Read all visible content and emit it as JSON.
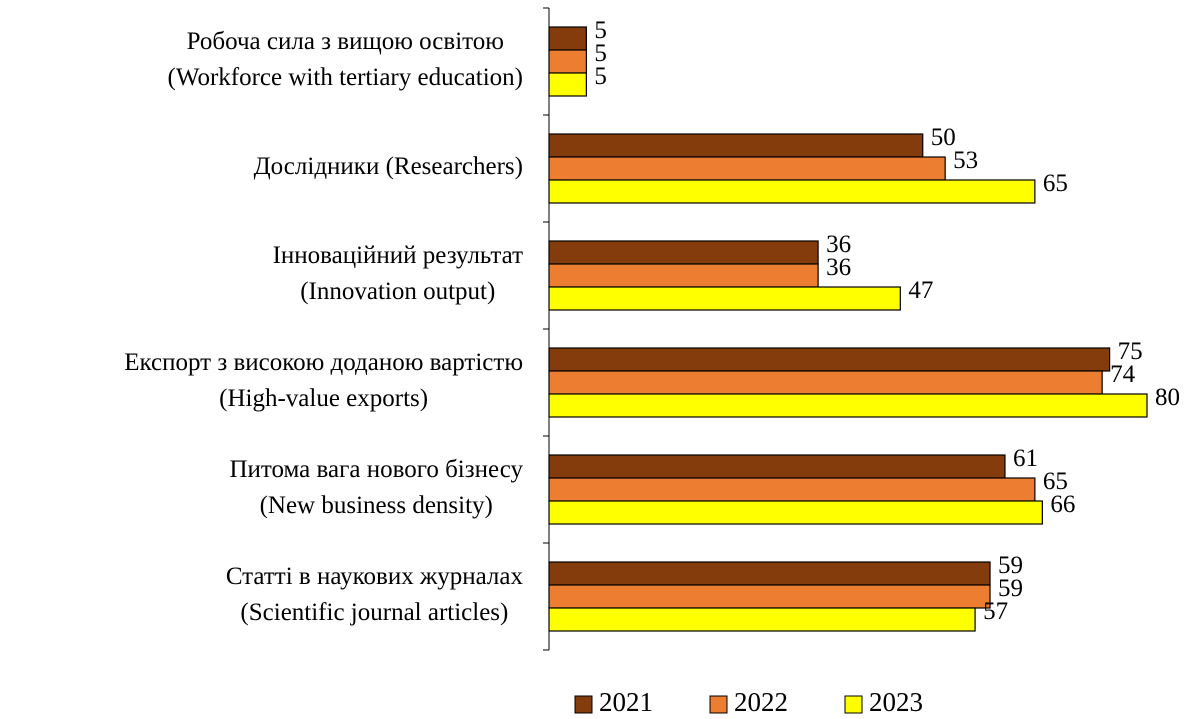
{
  "chart_data": {
    "type": "bar",
    "orientation": "horizontal",
    "categories": [
      [
        "Робоча сила з вищою освітою",
        "(Workforce with tertiary education)"
      ],
      [
        "Дослідники (Researchers)"
      ],
      [
        "Інноваційний результат",
        "(Innovation output)"
      ],
      [
        "Експорт з високою доданою вартістю",
        "(High-value exports)"
      ],
      [
        "Питома вага нового бізнесу",
        "(New business density)"
      ],
      [
        "Статті в наукових журналах",
        "(Scientific journal articles)"
      ]
    ],
    "series": [
      {
        "name": "2021",
        "color": "#843c0c",
        "values": [
          5,
          50,
          36,
          75,
          61,
          59
        ]
      },
      {
        "name": "2022",
        "color": "#ed7d31",
        "values": [
          5,
          53,
          36,
          74,
          65,
          59
        ]
      },
      {
        "name": "2023",
        "color": "#ffff00",
        "values": [
          5,
          65,
          47,
          80,
          66,
          57
        ]
      }
    ],
    "legend": "bottom"
  }
}
